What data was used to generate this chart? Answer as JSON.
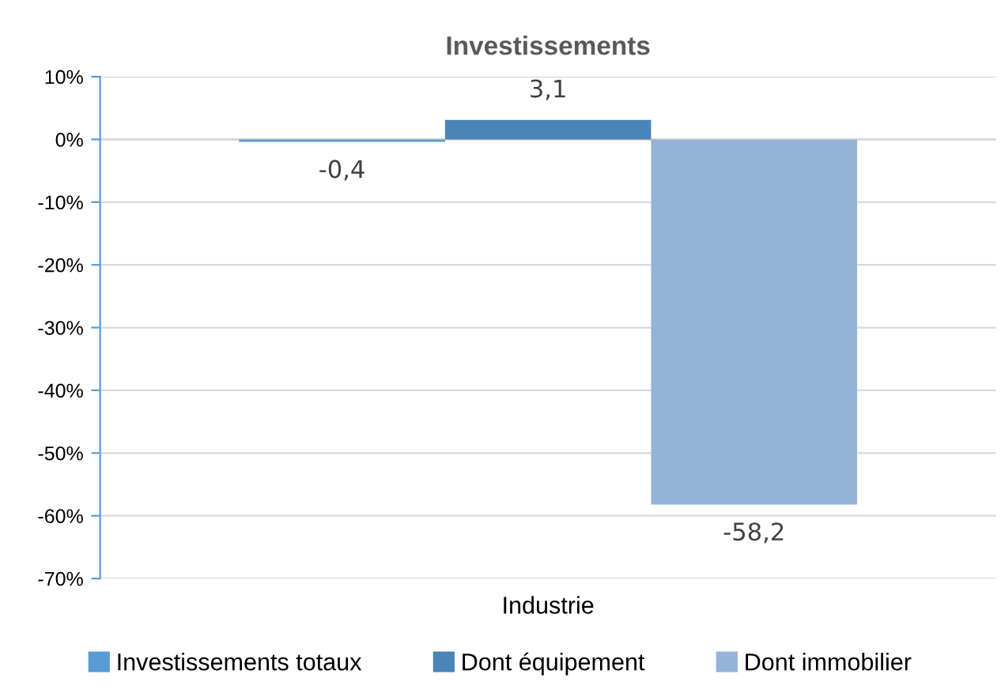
{
  "chart_data": {
    "type": "bar",
    "title": "Investissements",
    "categories": [
      "Industrie"
    ],
    "series": [
      {
        "name": "Investissements totaux",
        "color": "#5b9bd5",
        "values": [
          -0.4
        ],
        "value_labels": [
          "-0,4"
        ]
      },
      {
        "name": "Dont équipement",
        "color": "#4a84b8",
        "values": [
          3.1
        ],
        "value_labels": [
          "3,1"
        ]
      },
      {
        "name": "Dont immobilier",
        "color": "#95b3d7",
        "values": [
          -58.2
        ],
        "value_labels": [
          "-58,2"
        ]
      }
    ],
    "ylim": [
      -70,
      10
    ],
    "yticks": [
      {
        "value": 10,
        "label": "10%"
      },
      {
        "value": 0,
        "label": "0%"
      },
      {
        "value": -10,
        "label": "-10%"
      },
      {
        "value": -20,
        "label": "-20%"
      },
      {
        "value": -30,
        "label": "-30%"
      },
      {
        "value": -40,
        "label": "-40%"
      },
      {
        "value": -50,
        "label": "-50%"
      },
      {
        "value": -60,
        "label": "-60%"
      },
      {
        "value": -70,
        "label": "-70%"
      }
    ],
    "grid": "y",
    "legend": "bottom"
  }
}
